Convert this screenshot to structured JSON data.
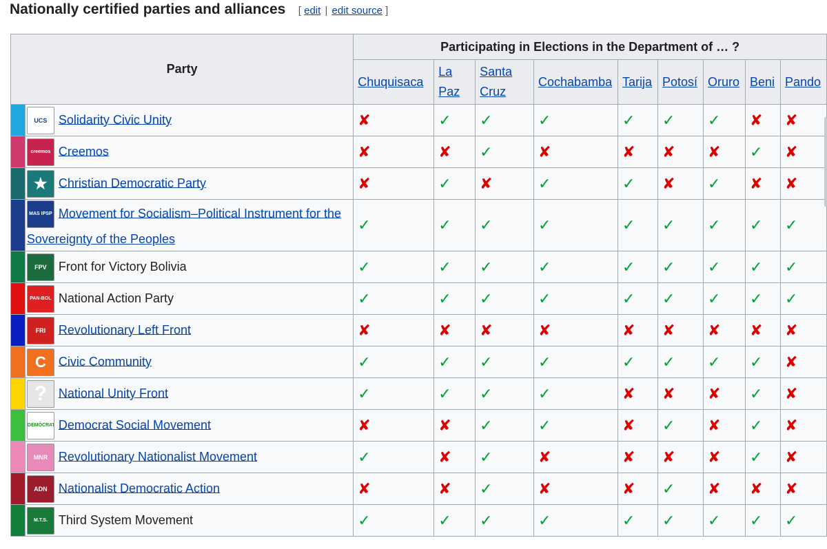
{
  "section": {
    "title": "Nationally certified parties and alliances",
    "bracket_open": "[",
    "edit": "edit",
    "sep": "|",
    "edit_source": "edit source",
    "bracket_close": "]"
  },
  "table": {
    "party_header": "Party",
    "dept_header": "Participating in Elections in the Department of … ?",
    "departments": [
      {
        "lines": [
          "Chuquisaca"
        ]
      },
      {
        "lines": [
          "La",
          "Paz"
        ]
      },
      {
        "lines": [
          "Santa",
          "Cruz"
        ]
      },
      {
        "lines": [
          "Cochabamba"
        ]
      },
      {
        "lines": [
          "Tarija"
        ]
      },
      {
        "lines": [
          "Potosí"
        ]
      },
      {
        "lines": [
          "Oruro"
        ]
      },
      {
        "lines": [
          "Beni"
        ]
      },
      {
        "lines": [
          "Pando"
        ]
      }
    ],
    "marks": {
      "yes": "✓",
      "no": "✘"
    },
    "rows": [
      {
        "name": "Solidarity Civic Unity",
        "link": true,
        "color": "#1fa8e0",
        "logo_bg": "#ffffff",
        "logo_fg": "#1a3d6e",
        "logo_text": "UCS",
        "logo_icon": "ucs-logo-icon",
        "p": [
          0,
          1,
          1,
          1,
          1,
          1,
          1,
          0,
          0
        ]
      },
      {
        "name": "Creemos",
        "link": true,
        "color": "#d03a6e",
        "logo_bg": "#c8234f",
        "logo_fg": "#ffffff",
        "logo_text": "creemos",
        "logo_icon": "creemos-logo-icon",
        "p": [
          0,
          0,
          1,
          0,
          0,
          0,
          0,
          1,
          0
        ]
      },
      {
        "name": "Christian Democratic Party",
        "link": true,
        "color": "#1a6b6b",
        "logo_bg": "#1a7a7a",
        "logo_fg": "#ffffff",
        "logo_text": "★",
        "logo_icon": "pdc-logo-icon",
        "p": [
          0,
          1,
          0,
          1,
          1,
          0,
          1,
          0,
          0
        ]
      },
      {
        "name": "Movement for Socialism–Political Instrument for the Sovereignty of the Peoples",
        "link": true,
        "color": "#1b3d8c",
        "logo_bg": "#1b3d8c",
        "logo_fg": "#ffffff",
        "logo_text": "MAS IPSP",
        "logo_icon": "mas-logo-icon",
        "p": [
          1,
          1,
          1,
          1,
          1,
          1,
          1,
          1,
          1
        ],
        "tall": true
      },
      {
        "name": "Front for Victory Bolivia",
        "link": false,
        "color": "#0f7a45",
        "logo_bg": "#1a6b3d",
        "logo_fg": "#ffffff",
        "logo_text": "FPV",
        "logo_icon": "fpv-logo-icon",
        "p": [
          1,
          1,
          1,
          1,
          1,
          1,
          1,
          1,
          1
        ]
      },
      {
        "name": "National Action Party",
        "link": false,
        "color": "#e01010",
        "logo_bg": "#e02020",
        "logo_fg": "#ffffff",
        "logo_text": "PAN-BOL",
        "logo_icon": "pan-logo-icon",
        "p": [
          1,
          1,
          1,
          1,
          1,
          1,
          1,
          1,
          1
        ]
      },
      {
        "name": "Revolutionary Left Front",
        "link": true,
        "color": "#0a1fc0",
        "logo_bg": "#d02020",
        "logo_fg": "#ffffff",
        "logo_text": "FRI",
        "logo_icon": "fri-logo-icon",
        "p": [
          0,
          0,
          0,
          0,
          0,
          0,
          0,
          0,
          0
        ]
      },
      {
        "name": "Civic Community",
        "link": true,
        "color": "#f07020",
        "logo_bg": "#f07020",
        "logo_fg": "#ffffff",
        "logo_text": "C",
        "logo_icon": "cc-logo-icon",
        "p": [
          1,
          1,
          1,
          1,
          1,
          1,
          1,
          1,
          0
        ]
      },
      {
        "name": "National Unity Front",
        "link": true,
        "color": "#ffd400",
        "logo_bg": "#e6e6e6",
        "logo_fg": "#ffffff",
        "logo_text": "?",
        "logo_icon": "placeholder-logo-icon",
        "p": [
          1,
          1,
          1,
          1,
          0,
          0,
          0,
          1,
          0
        ]
      },
      {
        "name": "Democrat Social Movement",
        "link": true,
        "color": "#3cbf3c",
        "logo_bg": "#ffffff",
        "logo_fg": "#2a8a2a",
        "logo_text": "DEMÓCRATAS",
        "logo_icon": "mds-logo-icon",
        "p": [
          0,
          0,
          1,
          1,
          0,
          1,
          0,
          1,
          0
        ]
      },
      {
        "name": "Revolutionary Nationalist Movement",
        "link": true,
        "color": "#ee88b8",
        "logo_bg": "#e78ab9",
        "logo_fg": "#ffffff",
        "logo_text": "MNR",
        "logo_icon": "mnr-logo-icon",
        "p": [
          1,
          0,
          1,
          0,
          0,
          0,
          0,
          1,
          0
        ]
      },
      {
        "name": "Nationalist Democratic Action",
        "link": true,
        "color": "#a01b2b",
        "logo_bg": "#9b1c2c",
        "logo_fg": "#ffffff",
        "logo_text": "ADN",
        "logo_icon": "adn-logo-icon",
        "p": [
          0,
          0,
          1,
          0,
          0,
          1,
          0,
          0,
          0
        ]
      },
      {
        "name": "Third System Movement",
        "link": false,
        "color": "#12803a",
        "logo_bg": "#1a7a3a",
        "logo_fg": "#ffffff",
        "logo_text": "M.T.S.",
        "logo_icon": "mts-logo-icon",
        "p": [
          1,
          1,
          1,
          1,
          1,
          1,
          1,
          1,
          1
        ]
      }
    ]
  }
}
